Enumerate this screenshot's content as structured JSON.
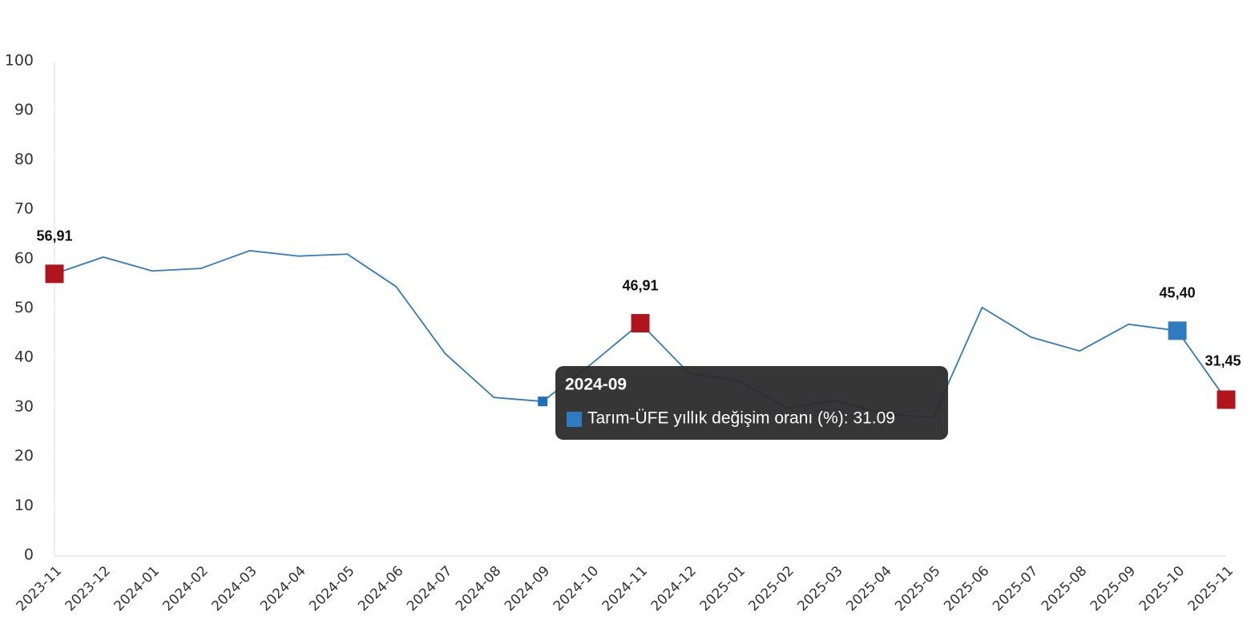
{
  "chart_data": {
    "type": "line",
    "categories": [
      "2023-11",
      "2023-12",
      "2024-01",
      "2024-02",
      "2024-03",
      "2024-04",
      "2024-05",
      "2024-06",
      "2024-07",
      "2024-08",
      "2024-09",
      "2024-10",
      "2024-11",
      "2024-12",
      "2025-01",
      "2025-02",
      "2025-03",
      "2025-04",
      "2025-05",
      "2025-06",
      "2025-07",
      "2025-08",
      "2025-09",
      "2025-10",
      "2025-11"
    ],
    "series": [
      {
        "name": "Tarım-ÜFE yıllık değişim oranı (%)",
        "color": "#2e7bbf",
        "values": [
          56.91,
          60.3,
          57.5,
          58.0,
          61.6,
          60.5,
          60.9,
          54.3,
          40.8,
          31.9,
          31.09,
          38.7,
          46.91,
          36.8,
          35.3,
          29.7,
          31.3,
          28.5,
          27.9,
          50.1,
          44.1,
          41.3,
          46.7,
          45.4,
          31.45
        ],
        "value_labels": [
          "56,91",
          null,
          null,
          null,
          null,
          null,
          null,
          null,
          null,
          null,
          null,
          null,
          "46,91",
          null,
          null,
          null,
          null,
          null,
          null,
          null,
          null,
          null,
          null,
          "45,40",
          "31,45"
        ],
        "marker_colors": [
          "#b0141c",
          null,
          null,
          null,
          null,
          null,
          null,
          null,
          null,
          null,
          "#1f6fbf",
          null,
          "#b0141c",
          null,
          null,
          null,
          null,
          null,
          null,
          null,
          null,
          null,
          null,
          "#2e7bbf",
          "#b0141c"
        ]
      }
    ],
    "ylim": [
      0,
      100
    ],
    "yticks": [
      0,
      10,
      20,
      30,
      40,
      50,
      60,
      70,
      80,
      90,
      100
    ],
    "grid": false,
    "tooltip": {
      "title": "2024-09",
      "text": "Tarım-ÜFE yıllık değişim oranı (%): 31.09",
      "index": 10
    }
  }
}
